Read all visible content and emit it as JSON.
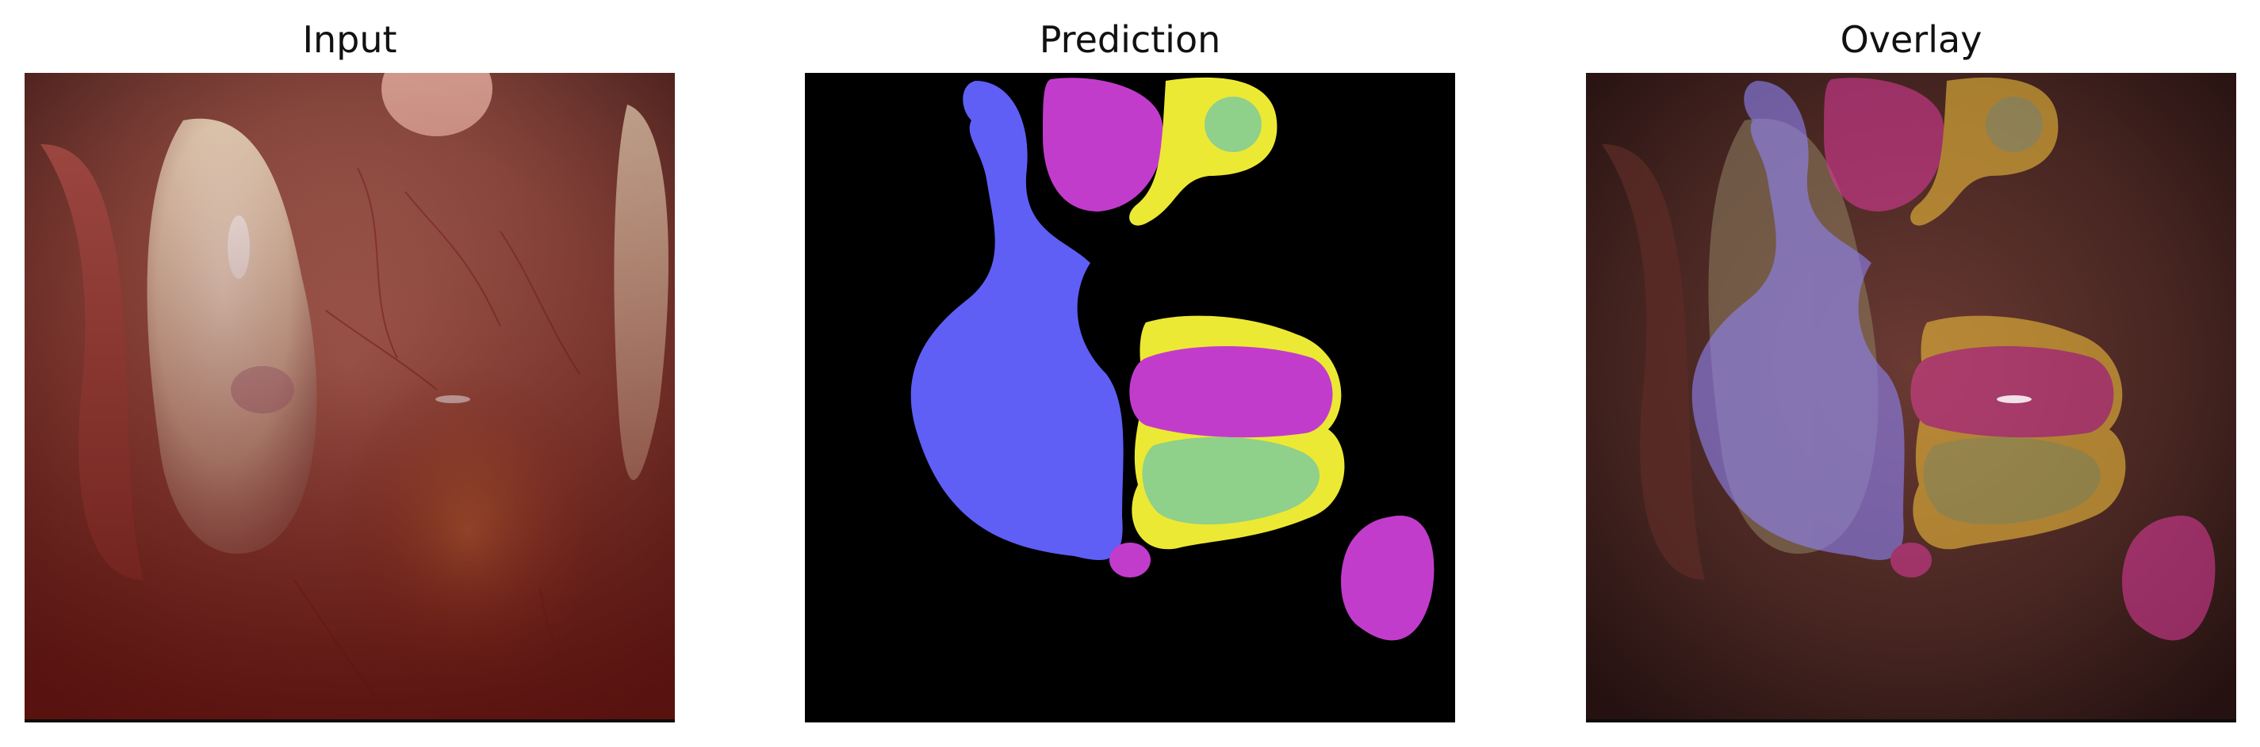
{
  "panels": [
    {
      "title": "Input"
    },
    {
      "title": "Prediction"
    },
    {
      "title": "Overlay"
    }
  ],
  "colors": {
    "background_black": "#000000",
    "class_blue": "#5f5ff6",
    "class_magenta": "#c23ccc",
    "class_yellow": "#ece934",
    "class_green": "#8fd08a",
    "tissue_base": "#7a3f36"
  }
}
